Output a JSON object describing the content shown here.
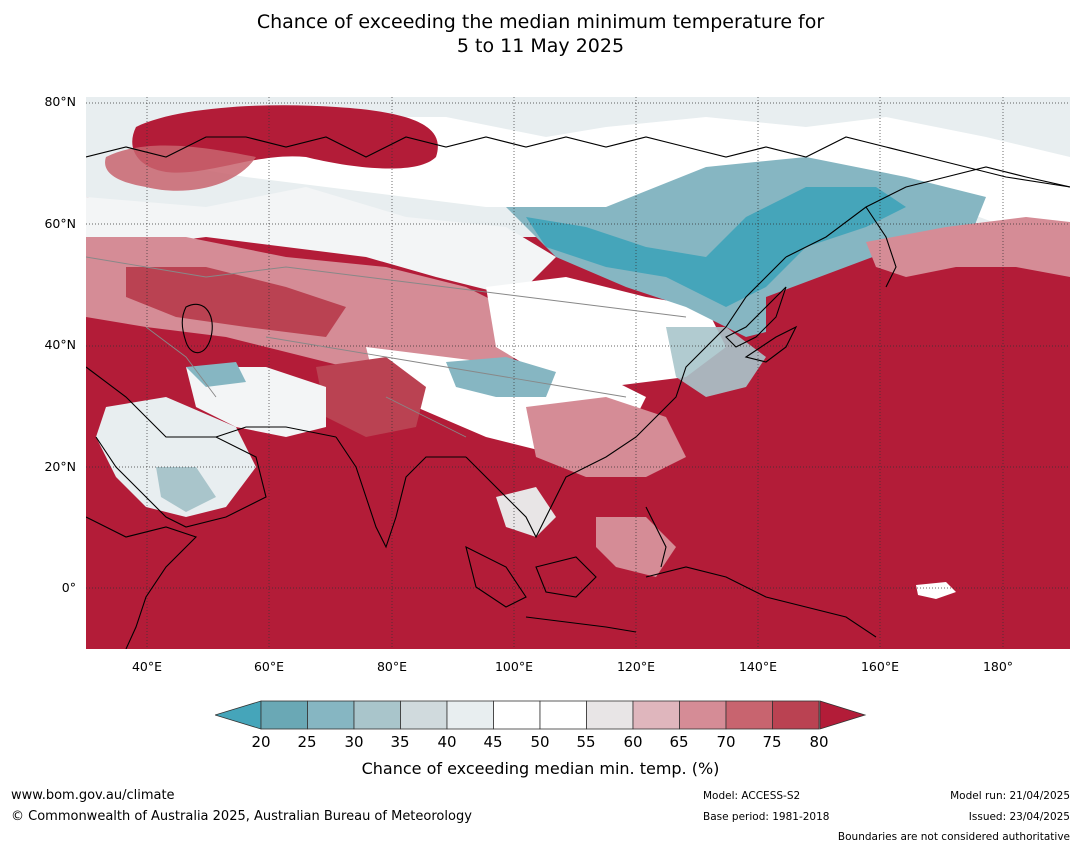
{
  "title": {
    "line1": "Chance of exceeding the median minimum temperature for",
    "line2": "5 to 11 May 2025"
  },
  "map": {
    "extent": {
      "lon": [
        30,
        191
      ],
      "lat": [
        -10,
        81
      ]
    },
    "lat_labels": [
      {
        "lat": 80,
        "label": "80°N"
      },
      {
        "lat": 60,
        "label": "60°N"
      },
      {
        "lat": 40,
        "label": "40°N"
      },
      {
        "lat": 20,
        "label": "20°N"
      },
      {
        "lat": 0,
        "label": "0°"
      }
    ],
    "lon_labels": [
      {
        "lon": 40,
        "label": "40°E"
      },
      {
        "lon": 60,
        "label": "60°E"
      },
      {
        "lon": 80,
        "label": "80°E"
      },
      {
        "lon": 100,
        "label": "100°E"
      },
      {
        "lon": 120,
        "label": "120°E"
      },
      {
        "lon": 140,
        "label": "140°E"
      },
      {
        "lon": 160,
        "label": "160°E"
      },
      {
        "lon": 180,
        "label": "180°"
      }
    ],
    "ocean_fill_color": "#b31c38"
  },
  "colorbar": {
    "ticks": [
      "20",
      "25",
      "30",
      "35",
      "40",
      "45",
      "50",
      "55",
      "60",
      "65",
      "70",
      "75",
      "80"
    ],
    "colors": [
      "#6aa8b5",
      "#86b6c2",
      "#a9c5cb",
      "#d0dadd",
      "#e8eef0",
      "#ffffff",
      "#ffffff",
      "#e8e5e6",
      "#dfb6bd",
      "#d58c96",
      "#c8646f",
      "#ba4252"
    ],
    "low_color": "#45a5ba",
    "high_color": "#b31c38",
    "label": "Chance of exceeding median min. temp. (%)"
  },
  "footer": {
    "website": "www.bom.gov.au/climate",
    "copyright": "© Commonwealth of Australia 2025, Australian Bureau of Meteorology",
    "model": "Model: ACCESS-S2",
    "base_period": "Base period: 1981-2018",
    "model_run": "Model run: 21/04/2025",
    "issued": "Issued: 23/04/2025",
    "disclaimer": "Boundaries are not considered authoritative"
  }
}
